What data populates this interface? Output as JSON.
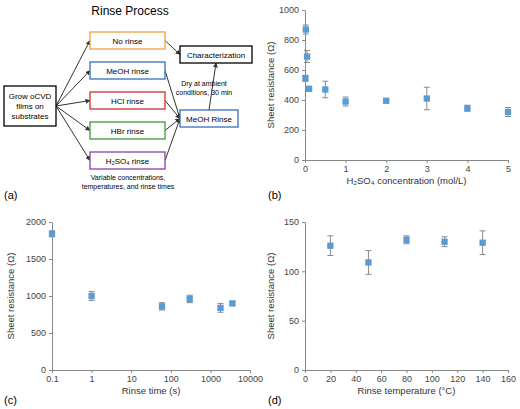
{
  "diagram": {
    "title": "Rinse Process",
    "label": "(a)",
    "nodes": [
      {
        "lines": [
          "Grow oCVD",
          "films on",
          "substrates"
        ],
        "color": "#000000"
      },
      {
        "lines": [
          "No rinse"
        ],
        "color": "#f0a040"
      },
      {
        "lines": [
          "MeOH rinse"
        ],
        "color": "#3a6fb5"
      },
      {
        "lines": [
          "HCl rinse"
        ],
        "color": "#d03030"
      },
      {
        "lines": [
          "HBr rinse"
        ],
        "color": "#3f9a3a"
      },
      {
        "lines": [
          "H₂SO₄ rinse"
        ],
        "color": "#9040a8"
      },
      {
        "lines": [
          "Characterization"
        ],
        "color": "#000000"
      },
      {
        "lines": [
          "MeOH Rinse"
        ],
        "color": "#3a6fb5"
      }
    ],
    "notes": [
      {
        "lines": [
          "Dry at ambient",
          "conditions, 30 min"
        ]
      },
      {
        "lines": [
          "Variable concentrations,",
          "temperatures, and rinse times"
        ]
      }
    ]
  },
  "chart_data": [
    {
      "type": "scatter",
      "annotations": [
        "(b)"
      ],
      "x_label": "H₂SO₄ concentration (mol/L)",
      "y_label": "Sheet resistance (Ω)",
      "x": [
        0.01,
        0.02,
        0.05,
        0.1,
        0.5,
        1,
        2,
        3,
        4,
        5
      ],
      "values": [
        545,
        870,
        690,
        475,
        470,
        390,
        395,
        410,
        345,
        320
      ],
      "error": [
        20,
        30,
        40,
        15,
        55,
        30,
        15,
        75,
        20,
        30
      ],
      "color": "#5b9bd5",
      "marker": "square",
      "xlim": [
        0,
        5
      ],
      "xticks": [
        0,
        1,
        2,
        3,
        4,
        5
      ],
      "ylim": [
        0,
        1000
      ],
      "yticks": [
        0,
        200,
        400,
        600,
        800,
        1000
      ]
    },
    {
      "type": "scatter",
      "annotations": [
        "(c)"
      ],
      "x_label": "Rinse time (s)",
      "y_label": "Sheet resistance (Ω)",
      "log": "x",
      "x": [
        0.1,
        1,
        60,
        300,
        1800,
        3600
      ],
      "values": [
        1840,
        1000,
        860,
        960,
        840,
        900
      ],
      "error": [
        40,
        60,
        50,
        50,
        60,
        20
      ],
      "color": "#5b9bd5",
      "marker": "square",
      "xlim": [
        0.1,
        10000
      ],
      "xticks": [
        0.1,
        1,
        10,
        100,
        1000,
        10000
      ],
      "ylim": [
        0,
        2000
      ],
      "yticks": [
        0,
        500,
        1000,
        1500,
        2000
      ]
    },
    {
      "type": "scatter",
      "annotations": [
        "(d)"
      ],
      "x_label": "Rinse temperature (°C)",
      "y_label": "Sheet resistance (Ω)",
      "x": [
        20,
        50,
        80,
        110,
        140
      ],
      "values": [
        126,
        109,
        132,
        130,
        129
      ],
      "error": [
        10,
        12,
        4,
        5,
        12
      ],
      "color": "#5b9bd5",
      "marker": "square",
      "xlim": [
        0,
        160
      ],
      "xticks": [
        0,
        20,
        40,
        60,
        80,
        100,
        120,
        140,
        160
      ],
      "ylim": [
        0,
        150
      ],
      "yticks": [
        0,
        50,
        100,
        150
      ]
    }
  ]
}
